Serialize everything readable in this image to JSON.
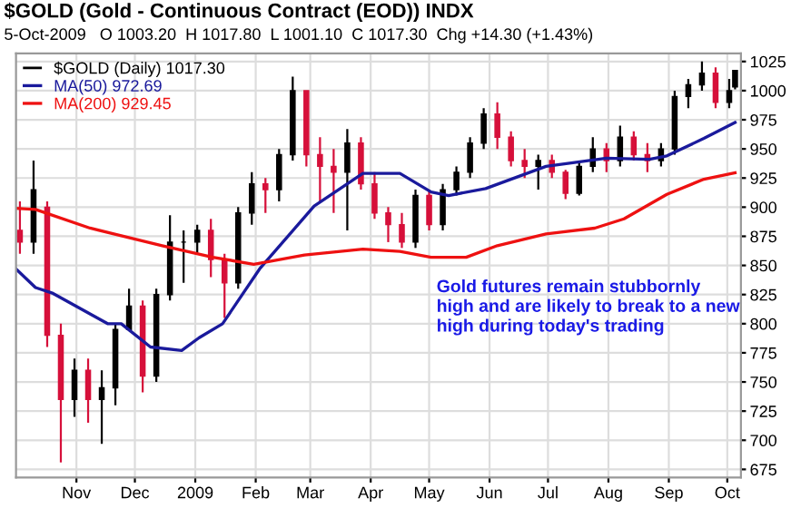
{
  "chart_data": {
    "type": "candlestick",
    "title": "$GOLD (Gold - Continuous Contract (EOD)) INDX",
    "subtitle": "5-Oct-2009   O 1003.20  H 1017.80  L 1001.10  C 1017.30  Chg +14.30 (+1.43%)",
    "series": [
      {
        "name": "$GOLD (Daily) 1017.30",
        "x": [
          "2008-10-03",
          "2008-10-10",
          "2008-10-17",
          "2008-10-24",
          "2008-10-31",
          "2008-11-07",
          "2008-11-14",
          "2008-11-21",
          "2008-11-28",
          "2008-12-05",
          "2008-12-12",
          "2008-12-19",
          "2008-12-26",
          "2009-01-02",
          "2009-01-09",
          "2009-01-16",
          "2009-01-23",
          "2009-01-30",
          "2009-02-06",
          "2009-02-13",
          "2009-02-20",
          "2009-02-27",
          "2009-03-06",
          "2009-03-13",
          "2009-03-20",
          "2009-03-27",
          "2009-04-03",
          "2009-04-10",
          "2009-04-17",
          "2009-04-24",
          "2009-05-01",
          "2009-05-08",
          "2009-05-15",
          "2009-05-22",
          "2009-05-29",
          "2009-06-05",
          "2009-06-12",
          "2009-06-19",
          "2009-06-26",
          "2009-07-03",
          "2009-07-10",
          "2009-07-17",
          "2009-07-24",
          "2009-07-31",
          "2009-08-07",
          "2009-08-14",
          "2009-08-21",
          "2009-08-28",
          "2009-09-04",
          "2009-09-11",
          "2009-09-18",
          "2009-09-25",
          "2009-10-02",
          "2009-10-05"
        ],
        "ohlc": [
          [
            880,
            905,
            860,
            870
          ],
          [
            870,
            940,
            860,
            915
          ],
          [
            900,
            905,
            780,
            790
          ],
          [
            790,
            800,
            681,
            735
          ],
          [
            735,
            770,
            720,
            760
          ],
          [
            760,
            770,
            715,
            735
          ],
          [
            735,
            760,
            697,
            745
          ],
          [
            745,
            800,
            730,
            795
          ],
          [
            795,
            830,
            795,
            815
          ],
          [
            815,
            820,
            741,
            755
          ],
          [
            755,
            830,
            750,
            825
          ],
          [
            825,
            893,
            820,
            870
          ],
          [
            870,
            880,
            835,
            870
          ],
          [
            870,
            885,
            860,
            880
          ],
          [
            880,
            890,
            840,
            855
          ],
          [
            855,
            860,
            805,
            835
          ],
          [
            835,
            900,
            830,
            895
          ],
          [
            895,
            930,
            885,
            920
          ],
          [
            920,
            925,
            895,
            915
          ],
          [
            915,
            950,
            905,
            945
          ],
          [
            945,
            1012,
            940,
            1000
          ],
          [
            1000,
            1000,
            935,
            945
          ],
          [
            945,
            960,
            905,
            935
          ],
          [
            935,
            950,
            895,
            930
          ],
          [
            930,
            967,
            880,
            955
          ],
          [
            955,
            960,
            915,
            920
          ],
          [
            920,
            930,
            890,
            895
          ],
          [
            895,
            900,
            870,
            885
          ],
          [
            885,
            895,
            865,
            870
          ],
          [
            870,
            915,
            865,
            910
          ],
          [
            910,
            915,
            880,
            885
          ],
          [
            885,
            920,
            880,
            915
          ],
          [
            915,
            935,
            910,
            930
          ],
          [
            930,
            960,
            925,
            955
          ],
          [
            955,
            985,
            950,
            980
          ],
          [
            980,
            990,
            950,
            960
          ],
          [
            960,
            965,
            935,
            940
          ],
          [
            940,
            950,
            925,
            935
          ],
          [
            935,
            945,
            915,
            940
          ],
          [
            940,
            945,
            925,
            930
          ],
          [
            930,
            932,
            907,
            912
          ],
          [
            912,
            940,
            910,
            935
          ],
          [
            935,
            960,
            930,
            950
          ],
          [
            950,
            955,
            930,
            940
          ],
          [
            940,
            970,
            935,
            960
          ],
          [
            960,
            965,
            940,
            945
          ],
          [
            945,
            955,
            930,
            940
          ],
          [
            940,
            955,
            935,
            950
          ],
          [
            950,
            1000,
            945,
            995
          ],
          [
            995,
            1010,
            985,
            1005
          ],
          [
            1005,
            1025,
            1000,
            1015
          ],
          [
            1015,
            1020,
            985,
            990
          ],
          [
            990,
            1010,
            985,
            1000
          ],
          [
            1003.2,
            1017.8,
            1001.1,
            1017.3
          ]
        ],
        "colors": [
          "#d6103a",
          "#000000",
          "#d6103a",
          "#d6103a",
          "#000000",
          "#d6103a",
          "#000000",
          "#000000",
          "#000000",
          "#d6103a",
          "#000000",
          "#000000",
          "#000000",
          "#000000",
          "#d6103a",
          "#d6103a",
          "#000000",
          "#000000",
          "#d6103a",
          "#000000",
          "#000000",
          "#d6103a",
          "#d6103a",
          "#d6103a",
          "#000000",
          "#d6103a",
          "#d6103a",
          "#d6103a",
          "#d6103a",
          "#000000",
          "#d6103a",
          "#000000",
          "#000000",
          "#000000",
          "#000000",
          "#d6103a",
          "#d6103a",
          "#d6103a",
          "#000000",
          "#d6103a",
          "#d6103a",
          "#000000",
          "#000000",
          "#d6103a",
          "#000000",
          "#d6103a",
          "#d6103a",
          "#000000",
          "#000000",
          "#000000",
          "#000000",
          "#d6103a",
          "#000000",
          "#000000"
        ]
      },
      {
        "name": "MA(50) 972.69",
        "type": "line",
        "color": "#1a1a9c",
        "x": [
          "2008-10-01",
          "2008-10-11",
          "2008-10-20",
          "2008-11-17",
          "2008-11-24",
          "2008-12-09",
          "2008-12-25",
          "2009-01-03",
          "2009-01-15",
          "2009-02-03",
          "2009-03-03",
          "2009-03-28",
          "2009-04-16",
          "2009-05-02",
          "2009-05-11",
          "2009-05-30",
          "2009-06-30",
          "2009-07-31",
          "2009-08-22",
          "2009-08-31",
          "2009-09-19",
          "2009-10-05"
        ],
        "values": [
          847,
          831,
          826,
          800,
          800,
          780,
          777,
          788,
          800,
          847,
          901,
          929,
          929,
          913,
          910,
          916,
          935,
          942,
          941,
          944,
          959,
          972.69
        ]
      },
      {
        "name": "MA(200) 929.45",
        "type": "line",
        "color": "#ee1111",
        "x": [
          "2008-10-01",
          "2008-10-11",
          "2008-11-08",
          "2008-12-15",
          "2009-01-10",
          "2009-01-31",
          "2009-02-26",
          "2009-03-28",
          "2009-04-16",
          "2009-05-02",
          "2009-05-20",
          "2009-06-05",
          "2009-06-30",
          "2009-07-25",
          "2009-08-09",
          "2009-08-31",
          "2009-09-19",
          "2009-10-05"
        ],
        "values": [
          899,
          898,
          882,
          867,
          857,
          851,
          859,
          864,
          862,
          857,
          857,
          867,
          877,
          882,
          890,
          911,
          924,
          929.45
        ]
      }
    ],
    "annotations": [
      "Gold futures remain stubbornly\nhigh and are likely to break to a new\nhigh during today's trading"
    ],
    "xlim": [
      "2008-10-01",
      "2009-10-08"
    ],
    "xticks": [
      {
        "value": "2008-11-01",
        "label": "Nov"
      },
      {
        "value": "2008-12-01",
        "label": "Dec"
      },
      {
        "value": "2009-01-01",
        "label": "2009"
      },
      {
        "value": "2009-02-01",
        "label": "Feb"
      },
      {
        "value": "2009-03-01",
        "label": "Mar"
      },
      {
        "value": "2009-04-01",
        "label": "Apr"
      },
      {
        "value": "2009-05-01",
        "label": "May"
      },
      {
        "value": "2009-06-01",
        "label": "Jun"
      },
      {
        "value": "2009-07-01",
        "label": "Jul"
      },
      {
        "value": "2009-08-01",
        "label": "Aug"
      },
      {
        "value": "2009-09-01",
        "label": "Sep"
      },
      {
        "value": "2009-10-01",
        "label": "Oct"
      }
    ],
    "ylim": [
      668,
      1032
    ],
    "yticks": [
      675,
      700,
      725,
      750,
      775,
      800,
      825,
      850,
      875,
      900,
      925,
      950,
      975,
      1000,
      1025
    ],
    "grid": true,
    "legend": "top left"
  }
}
